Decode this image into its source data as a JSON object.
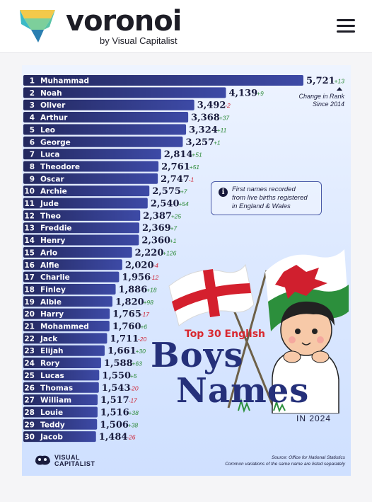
{
  "header": {
    "brand": "voronoi",
    "brand_sub": "by Visual Capitalist",
    "menu_icon": "hamburger-menu-icon"
  },
  "infographic": {
    "title_line1": "Top 30 English",
    "title_line2": "Boys",
    "title_line3": "Names",
    "year": "IN 2024",
    "legend_note": "Change in Rank\nSince 2014",
    "info_note": "First names recorded\nfrom live births registered\nin England & Wales",
    "logo_text": "VISUAL\nCAPITALIST",
    "source": "Source: Office for National Statistics",
    "footnote": "Common variations of the same name are listed separately",
    "colors": {
      "bar": "#2f3a8f",
      "positive": "#2e8b3a",
      "negative": "#d0283a",
      "title_red": "#d9282f",
      "title_blue": "#25307a"
    }
  },
  "chart_data": {
    "type": "bar",
    "orientation": "horizontal",
    "title": "Top 30 English Boys Names",
    "categories": [
      "Muhammad",
      "Noah",
      "Oliver",
      "Arthur",
      "Leo",
      "George",
      "Luca",
      "Theodore",
      "Oscar",
      "Archie",
      "Jude",
      "Theo",
      "Freddie",
      "Henry",
      "Arlo",
      "Alfie",
      "Charlie",
      "Finley",
      "Albie",
      "Harry",
      "Mohammed",
      "Jack",
      "Elijah",
      "Rory",
      "Lucas",
      "Thomas",
      "William",
      "Louie",
      "Teddy",
      "Jacob"
    ],
    "ranks": [
      1,
      2,
      3,
      4,
      5,
      6,
      7,
      8,
      9,
      10,
      11,
      12,
      13,
      14,
      15,
      16,
      17,
      18,
      19,
      20,
      21,
      22,
      23,
      24,
      25,
      26,
      27,
      28,
      29,
      30
    ],
    "values": [
      5721,
      4139,
      3492,
      3368,
      3324,
      3257,
      2814,
      2761,
      2747,
      2575,
      2540,
      2387,
      2369,
      2360,
      2220,
      2020,
      1956,
      1886,
      1820,
      1765,
      1760,
      1711,
      1661,
      1588,
      1550,
      1543,
      1517,
      1516,
      1506,
      1484
    ],
    "value_labels": [
      "5,721",
      "4,139",
      "3,492",
      "3,368",
      "3,324",
      "3,257",
      "2,814",
      "2,761",
      "2,747",
      "2,575",
      "2,540",
      "2,387",
      "2,369",
      "2,360",
      "2,220",
      "2,020",
      "1,956",
      "1,886",
      "1,820",
      "1,765",
      "1,760",
      "1,711",
      "1,661",
      "1,588",
      "1,550",
      "1,543",
      "1,517",
      "1,516",
      "1,506",
      "1,484"
    ],
    "rank_change_since_2014": [
      "+13",
      "+9",
      "-2",
      "+37",
      "+11",
      "+1",
      "+51",
      "+51",
      "-1",
      "+7",
      "+54",
      "+25",
      "+7",
      "+1",
      "+126",
      "-4",
      "-12",
      "+18",
      "+98",
      "-17",
      "+6",
      "-20",
      "+30",
      "+63",
      "+5",
      "-20",
      "-17",
      "+38",
      "+38",
      "-26"
    ],
    "xlim": [
      0,
      5721
    ]
  }
}
